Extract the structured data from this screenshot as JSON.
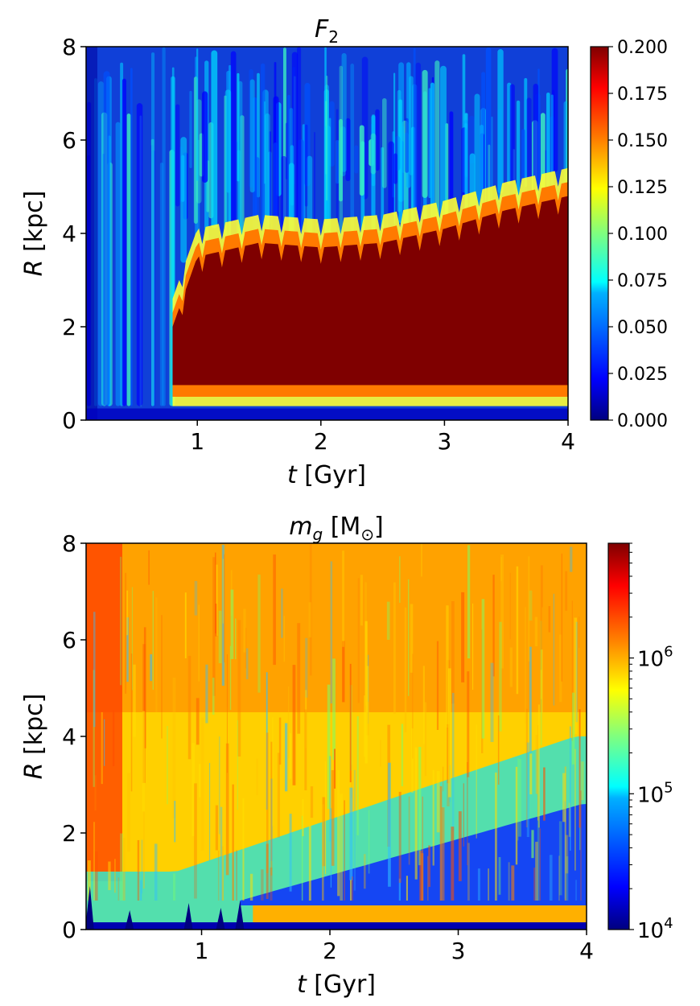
{
  "chart_data": [
    {
      "type": "heatmap",
      "title": "F_2",
      "xlabel": "t [Gyr]",
      "ylabel": "R [kpc]",
      "xlim": [
        0.1,
        4
      ],
      "ylim": [
        0,
        8
      ],
      "x_ticks": [
        "1",
        "2",
        "3",
        "4"
      ],
      "y_ticks": [
        "0",
        "2",
        "4",
        "6",
        "8"
      ],
      "colormap": "jet",
      "colorbar": {
        "scale": "linear",
        "range": [
          0,
          0.2
        ],
        "ticks": [
          "0.000",
          "0.025",
          "0.050",
          "0.075",
          "0.100",
          "0.125",
          "0.150",
          "0.175",
          "0.200"
        ]
      },
      "features": {
        "bar_onset_t": 0.8,
        "bar_inner_edge_R": 0.75,
        "bar_outer_edge_R": [
          {
            "t": 0.8,
            "R": 2.0
          },
          {
            "t": 1.0,
            "R": 3.5
          },
          {
            "t": 1.5,
            "R": 3.8
          },
          {
            "t": 2.0,
            "R": 3.7
          },
          {
            "t": 2.5,
            "R": 3.8
          },
          {
            "t": 3.0,
            "R": 4.1
          },
          {
            "t": 3.5,
            "R": 4.5
          },
          {
            "t": 4.0,
            "R": 4.8
          }
        ]
      }
    },
    {
      "type": "heatmap",
      "title": "m_g [M_⊙]",
      "xlabel": "t [Gyr]",
      "ylabel": "R [kpc]",
      "xlim": [
        0.1,
        4
      ],
      "ylim": [
        0,
        8
      ],
      "x_ticks": [
        "1",
        "2",
        "3",
        "4"
      ],
      "y_ticks": [
        "0",
        "2",
        "4",
        "6",
        "8"
      ],
      "colormap": "jet",
      "colorbar": {
        "scale": "log",
        "range": [
          10000,
          7000000
        ],
        "ticks": [
          {
            "value": 10000,
            "mantissa": "10",
            "exp": "4"
          },
          {
            "value": 100000,
            "mantissa": "10",
            "exp": "5"
          },
          {
            "value": 1000000,
            "mantissa": "10",
            "exp": "6"
          }
        ]
      }
    }
  ],
  "colors": {
    "jet": [
      "#00007f",
      "#0000ff",
      "#007fff",
      "#00ffff",
      "#7fff7f",
      "#ffff00",
      "#ff7f00",
      "#ff0000",
      "#7f0000"
    ],
    "axis": "#000000"
  }
}
